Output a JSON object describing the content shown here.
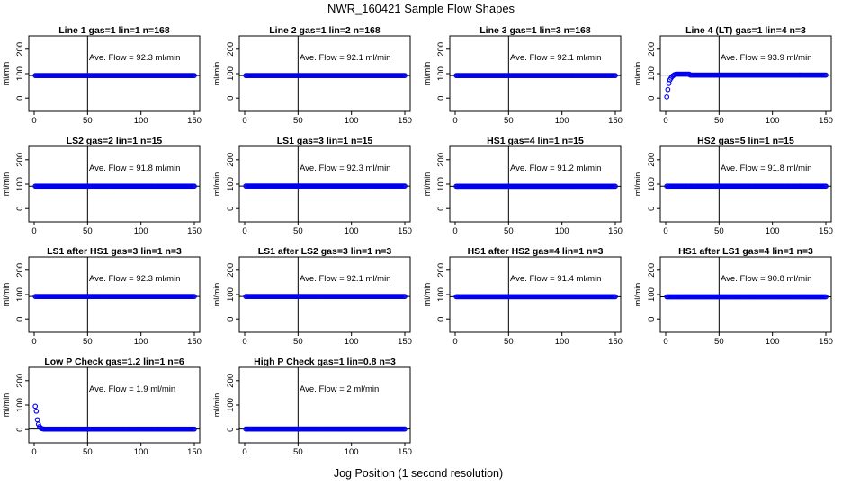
{
  "title": "NWR_160421  Sample Flow Shapes",
  "xlabel": "Jog Position (1 second resolution)",
  "ylabel": "ml/min",
  "annotation_prefix": "Ave. Flow =",
  "annotation_unit": "ml/min",
  "colors": {
    "points": "#0000ee",
    "axes": "#000000",
    "background": "#ffffff"
  },
  "chart_data": [
    {
      "type": "scatter",
      "title": "Line 1 gas=1 lin=1 n=168",
      "ave_flow": "92.3",
      "shape": "flat",
      "level": 92.3,
      "xlim": [
        0,
        150
      ],
      "ylim": [
        -25,
        225
      ],
      "xticks": [
        0,
        50,
        100,
        150
      ],
      "yticks": [
        0,
        100,
        200
      ],
      "vline_x": 50,
      "hline_y": 92.3
    },
    {
      "type": "scatter",
      "title": "Line 2 gas=1 lin=2 n=168",
      "ave_flow": "92.1",
      "shape": "flat",
      "level": 92.1,
      "xlim": [
        0,
        150
      ],
      "ylim": [
        -25,
        225
      ],
      "xticks": [
        0,
        50,
        100,
        150
      ],
      "yticks": [
        0,
        100,
        200
      ],
      "vline_x": 50,
      "hline_y": 92.1
    },
    {
      "type": "scatter",
      "title": "Line 3 gas=1 lin=3 n=168",
      "ave_flow": "92.1",
      "shape": "flat",
      "level": 92.1,
      "xlim": [
        0,
        150
      ],
      "ylim": [
        -25,
        225
      ],
      "xticks": [
        0,
        50,
        100,
        150
      ],
      "yticks": [
        0,
        100,
        200
      ],
      "vline_x": 50,
      "hline_y": 92.1
    },
    {
      "type": "scatter",
      "title": "Line 4 (LT) gas=1 lin=4 n=3",
      "ave_flow": "93.9",
      "shape": "rise",
      "level": 93.9,
      "xlim": [
        0,
        150
      ],
      "ylim": [
        -25,
        225
      ],
      "xticks": [
        0,
        50,
        100,
        150
      ],
      "yticks": [
        0,
        100,
        200
      ],
      "vline_x": 50,
      "hline_y": 93.9
    },
    {
      "type": "scatter",
      "title": "LS2 gas=2 lin=1 n=15",
      "ave_flow": "91.8",
      "shape": "flat",
      "level": 91.8,
      "xlim": [
        0,
        150
      ],
      "ylim": [
        -25,
        225
      ],
      "xticks": [
        0,
        50,
        100,
        150
      ],
      "yticks": [
        0,
        100,
        200
      ],
      "vline_x": 50,
      "hline_y": 91.8
    },
    {
      "type": "scatter",
      "title": "LS1 gas=3 lin=1 n=15",
      "ave_flow": "92.3",
      "shape": "flat",
      "level": 92.3,
      "xlim": [
        0,
        150
      ],
      "ylim": [
        -25,
        225
      ],
      "xticks": [
        0,
        50,
        100,
        150
      ],
      "yticks": [
        0,
        100,
        200
      ],
      "vline_x": 50,
      "hline_y": 92.3
    },
    {
      "type": "scatter",
      "title": "HS1 gas=4 lin=1 n=15",
      "ave_flow": "91.2",
      "shape": "flat",
      "level": 91.2,
      "xlim": [
        0,
        150
      ],
      "ylim": [
        -25,
        225
      ],
      "xticks": [
        0,
        50,
        100,
        150
      ],
      "yticks": [
        0,
        100,
        200
      ],
      "vline_x": 50,
      "hline_y": 91.2
    },
    {
      "type": "scatter",
      "title": "HS2 gas=5 lin=1 n=15",
      "ave_flow": "91.8",
      "shape": "flat",
      "level": 91.8,
      "xlim": [
        0,
        150
      ],
      "ylim": [
        -25,
        225
      ],
      "xticks": [
        0,
        50,
        100,
        150
      ],
      "yticks": [
        0,
        100,
        200
      ],
      "vline_x": 50,
      "hline_y": 91.8
    },
    {
      "type": "scatter",
      "title": "LS1 after HS1 gas=3 lin=1 n=3",
      "ave_flow": "92.3",
      "shape": "flat",
      "level": 92.3,
      "xlim": [
        0,
        150
      ],
      "ylim": [
        -25,
        225
      ],
      "xticks": [
        0,
        50,
        100,
        150
      ],
      "yticks": [
        0,
        100,
        200
      ],
      "vline_x": 50,
      "hline_y": 92.3
    },
    {
      "type": "scatter",
      "title": "LS1 after LS2 gas=3 lin=1 n=3",
      "ave_flow": "92.1",
      "shape": "flat",
      "level": 92.1,
      "xlim": [
        0,
        150
      ],
      "ylim": [
        -25,
        225
      ],
      "xticks": [
        0,
        50,
        100,
        150
      ],
      "yticks": [
        0,
        100,
        200
      ],
      "vline_x": 50,
      "hline_y": 92.1
    },
    {
      "type": "scatter",
      "title": "HS1 after HS2 gas=4 lin=1 n=3",
      "ave_flow": "91.4",
      "shape": "flat",
      "level": 91.4,
      "xlim": [
        0,
        150
      ],
      "ylim": [
        -25,
        225
      ],
      "xticks": [
        0,
        50,
        100,
        150
      ],
      "yticks": [
        0,
        100,
        200
      ],
      "vline_x": 50,
      "hline_y": 91.4
    },
    {
      "type": "scatter",
      "title": "HS1 after LS1 gas=4 lin=1 n=3",
      "ave_flow": "90.8",
      "shape": "flat",
      "level": 90.8,
      "xlim": [
        0,
        150
      ],
      "ylim": [
        -25,
        225
      ],
      "xticks": [
        0,
        50,
        100,
        150
      ],
      "yticks": [
        0,
        100,
        200
      ],
      "vline_x": 50,
      "hline_y": 90.8
    },
    {
      "type": "scatter",
      "title": "Low P Check gas=1.2 lin=1 n=6",
      "ave_flow": "1.9",
      "shape": "decay",
      "level": 1.9,
      "xlim": [
        0,
        150
      ],
      "ylim": [
        -25,
        225
      ],
      "xticks": [
        0,
        50,
        100,
        150
      ],
      "yticks": [
        0,
        100,
        200
      ],
      "vline_x": 50,
      "hline_y": 1.9
    },
    {
      "type": "scatter",
      "title": "High P Check gas=1 lin=0.8 n=3",
      "ave_flow": "2",
      "shape": "flat",
      "level": 2,
      "xlim": [
        0,
        150
      ],
      "ylim": [
        -25,
        225
      ],
      "xticks": [
        0,
        50,
        100,
        150
      ],
      "yticks": [
        0,
        100,
        200
      ],
      "vline_x": 50,
      "hline_y": 2
    }
  ]
}
